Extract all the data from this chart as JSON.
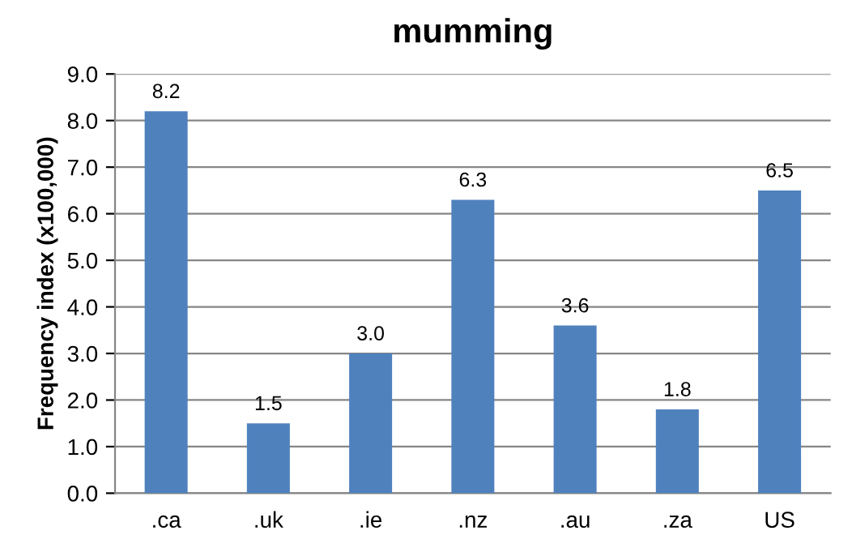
{
  "chart_data": {
    "type": "bar",
    "title": "mumming",
    "ylabel": "Frequency index (x100,000)",
    "categories": [
      ".ca",
      ".uk",
      ".ie",
      ".nz",
      ".au",
      ".za",
      "US"
    ],
    "values": [
      8.2,
      1.5,
      3.0,
      6.3,
      3.6,
      1.8,
      6.5
    ],
    "value_labels": [
      "8.2",
      "1.5",
      "3.0",
      "6.3",
      "3.6",
      "1.8",
      "6.5"
    ],
    "color": "#4f81bd",
    "ylim": [
      0,
      9
    ],
    "yticks": [
      {
        "value": 0,
        "label": "0.0"
      },
      {
        "value": 1,
        "label": "1.0"
      },
      {
        "value": 2,
        "label": "2.0"
      },
      {
        "value": 3,
        "label": "3.0"
      },
      {
        "value": 4,
        "label": "4.0"
      },
      {
        "value": 5,
        "label": "5.0"
      },
      {
        "value": 6,
        "label": "6.0"
      },
      {
        "value": 7,
        "label": "7.0"
      },
      {
        "value": 8,
        "label": "8.0"
      },
      {
        "value": 9,
        "label": "9.0"
      }
    ],
    "grid": "y"
  }
}
